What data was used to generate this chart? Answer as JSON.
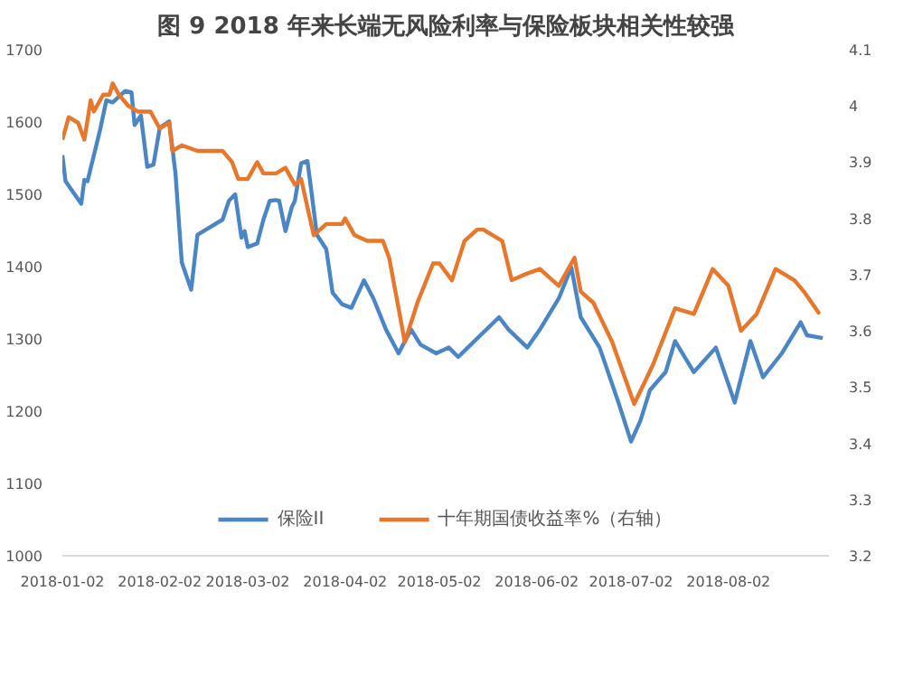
{
  "chart_data": {
    "type": "line",
    "title": "图 9 2018 年来长端无风险利率与保险板块相关性较强",
    "xlim": [
      "2018-01-02",
      "2018-09-03"
    ],
    "xticks": [
      "2018-01-02",
      "2018-02-02",
      "2018-03-02",
      "2018-04-02",
      "2018-05-02",
      "2018-06-02",
      "2018-07-02",
      "2018-08-02"
    ],
    "ylim": [
      1000,
      1700
    ],
    "yticks": [
      1000,
      1100,
      1200,
      1300,
      1400,
      1500,
      1600,
      1700
    ],
    "y2lim": [
      3.2,
      4.1
    ],
    "y2ticks": [
      3.2,
      3.3,
      3.4,
      3.5,
      3.6,
      3.7,
      3.8,
      3.9,
      4,
      4.1
    ],
    "grid": false,
    "legend": "bottom",
    "marker": "none",
    "line_style": "solid",
    "series": [
      {
        "name": "保险II",
        "color": "#4a86c5",
        "x": [
          "2018-01-02",
          "2018-01-03",
          "2018-01-08",
          "2018-01-09",
          "2018-01-10",
          "2018-01-14",
          "2018-01-16",
          "2018-01-18",
          "2018-01-22",
          "2018-01-24",
          "2018-01-25",
          "2018-01-27",
          "2018-01-29",
          "2018-01-31",
          "2018-02-02",
          "2018-02-05",
          "2018-02-07",
          "2018-02-09",
          "2018-02-12",
          "2018-02-14",
          "2018-02-22",
          "2018-02-24",
          "2018-02-26",
          "2018-02-28",
          "2018-03-01",
          "2018-03-02",
          "2018-03-05",
          "2018-03-07",
          "2018-03-09",
          "2018-03-11",
          "2018-03-12",
          "2018-03-14",
          "2018-03-16",
          "2018-03-17",
          "2018-03-19",
          "2018-03-21",
          "2018-03-22",
          "2018-03-24",
          "2018-03-27",
          "2018-03-29",
          "2018-04-01",
          "2018-04-04",
          "2018-04-08",
          "2018-04-11",
          "2018-04-15",
          "2018-04-19",
          "2018-04-23",
          "2018-04-26",
          "2018-05-01",
          "2018-05-05",
          "2018-05-08",
          "2018-05-21",
          "2018-05-24",
          "2018-05-30",
          "2018-06-03",
          "2018-06-09",
          "2018-06-13",
          "2018-06-16",
          "2018-06-22",
          "2018-06-28",
          "2018-07-02",
          "2018-07-05",
          "2018-07-08",
          "2018-07-13",
          "2018-07-16",
          "2018-07-22",
          "2018-07-29",
          "2018-08-04",
          "2018-08-09",
          "2018-08-13",
          "2018-08-19",
          "2018-08-25",
          "2018-08-27",
          "2018-09-01"
        ],
        "values": [
          1554,
          1518,
          1487,
          1520,
          1518,
          1589,
          1630,
          1627,
          1643,
          1641,
          1596,
          1609,
          1538,
          1541,
          1592,
          1601,
          1529,
          1406,
          1368,
          1444,
          1465,
          1491,
          1500,
          1440,
          1449,
          1427,
          1432,
          1465,
          1491,
          1492,
          1491,
          1449,
          1482,
          1491,
          1543,
          1546,
          1513,
          1444,
          1424,
          1364,
          1348,
          1343,
          1381,
          1356,
          1313,
          1280,
          1313,
          1292,
          1280,
          1288,
          1275,
          1330,
          1313,
          1288,
          1313,
          1356,
          1399,
          1330,
          1288,
          1212,
          1158,
          1187,
          1229,
          1254,
          1297,
          1254,
          1288,
          1212,
          1297,
          1247,
          1280,
          1323,
          1305,
          1301
        ]
      },
      {
        "name": "十年期国债收益率%（右轴）",
        "color": "#e8762b",
        "axis": "y2",
        "x": [
          "2018-01-02",
          "2018-01-04",
          "2018-01-07",
          "2018-01-09",
          "2018-01-11",
          "2018-01-12",
          "2018-01-15",
          "2018-01-17",
          "2018-01-18",
          "2018-01-20",
          "2018-01-23",
          "2018-01-26",
          "2018-01-30",
          "2018-02-02",
          "2018-02-05",
          "2018-02-06",
          "2018-02-09",
          "2018-02-14",
          "2018-02-22",
          "2018-02-25",
          "2018-02-27",
          "2018-03-02",
          "2018-03-05",
          "2018-03-07",
          "2018-03-11",
          "2018-03-14",
          "2018-03-16",
          "2018-03-17",
          "2018-03-19",
          "2018-03-23",
          "2018-03-25",
          "2018-03-27",
          "2018-04-01",
          "2018-04-02",
          "2018-04-05",
          "2018-04-09",
          "2018-04-11",
          "2018-04-14",
          "2018-04-16",
          "2018-04-19",
          "2018-04-21",
          "2018-04-25",
          "2018-04-30",
          "2018-05-02",
          "2018-05-06",
          "2018-05-10",
          "2018-05-14",
          "2018-05-16",
          "2018-05-19",
          "2018-05-22",
          "2018-05-25",
          "2018-05-29",
          "2018-06-03",
          "2018-06-09",
          "2018-06-14",
          "2018-06-16",
          "2018-06-20",
          "2018-06-26",
          "2018-07-03",
          "2018-07-09",
          "2018-07-16",
          "2018-07-22",
          "2018-07-28",
          "2018-08-02",
          "2018-08-06",
          "2018-08-11",
          "2018-08-17",
          "2018-08-23",
          "2018-08-26",
          "2018-08-31"
        ],
        "values": [
          3.94,
          3.98,
          3.97,
          3.94,
          4.01,
          3.99,
          4.02,
          4.02,
          4.04,
          4.02,
          4.0,
          3.99,
          3.99,
          3.96,
          3.97,
          3.92,
          3.93,
          3.92,
          3.92,
          3.9,
          3.87,
          3.87,
          3.9,
          3.88,
          3.88,
          3.89,
          3.87,
          3.86,
          3.87,
          3.77,
          3.78,
          3.79,
          3.79,
          3.8,
          3.77,
          3.76,
          3.76,
          3.76,
          3.73,
          3.64,
          3.58,
          3.65,
          3.72,
          3.72,
          3.69,
          3.76,
          3.78,
          3.78,
          3.77,
          3.76,
          3.69,
          3.7,
          3.71,
          3.68,
          3.73,
          3.67,
          3.65,
          3.58,
          3.47,
          3.54,
          3.64,
          3.63,
          3.71,
          3.68,
          3.6,
          3.63,
          3.71,
          3.69,
          3.67,
          3.63
        ]
      }
    ]
  }
}
